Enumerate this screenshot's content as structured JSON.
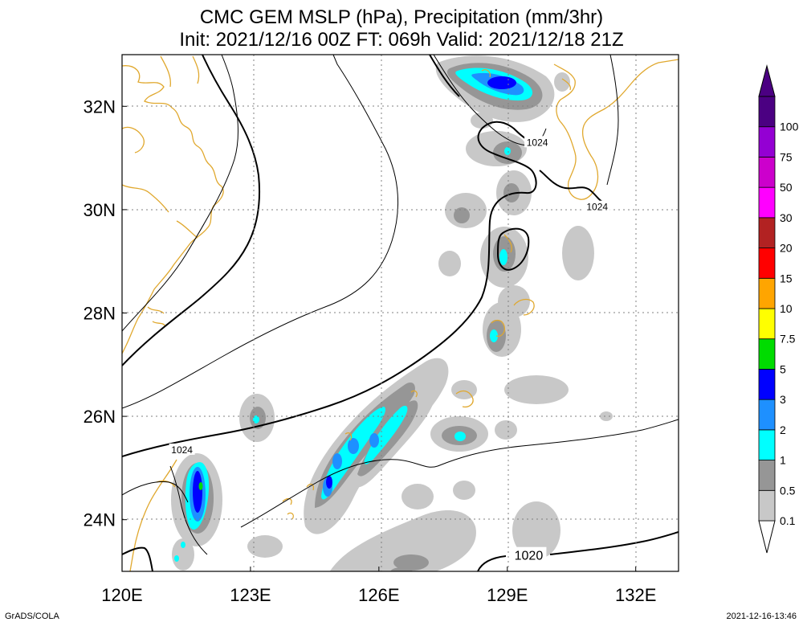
{
  "title": {
    "line1": "CMC GEM MSLP (hPa), Precipitation (mm/3hr)",
    "line2": "Init: 2021/12/16 00Z  FT: 069h  Valid: 2021/12/18 21Z"
  },
  "footer": {
    "left": "GrADS/COLA",
    "right": "2021-12-16-13:46"
  },
  "map": {
    "lon_range": [
      120,
      133
    ],
    "lat_range": [
      23,
      33
    ],
    "x_ticks": [
      {
        "value": 120,
        "label": "120E"
      },
      {
        "value": 123,
        "label": "123E"
      },
      {
        "value": 126,
        "label": "126E"
      },
      {
        "value": 129,
        "label": "129E"
      },
      {
        "value": 132,
        "label": "132E"
      }
    ],
    "y_ticks": [
      {
        "value": 24,
        "label": "24N"
      },
      {
        "value": 26,
        "label": "26N"
      },
      {
        "value": 28,
        "label": "28N"
      },
      {
        "value": 30,
        "label": "30N"
      },
      {
        "value": 32,
        "label": "32N"
      }
    ],
    "grid": true,
    "coast_color": "#e0a82e",
    "isobar_labels": [
      {
        "text": "1024",
        "lon": 121.4,
        "lat": 25.35
      },
      {
        "text": "1024",
        "lon": 129.7,
        "lat": 31.3
      },
      {
        "text": "1024",
        "lon": 131.1,
        "lat": 30.05
      },
      {
        "text": "1020",
        "lon": 129.5,
        "lat": 23.3
      }
    ]
  },
  "colorbar": {
    "levels": [
      "0.1",
      "0.5",
      "1",
      "2",
      "3",
      "5",
      "7.5",
      "10",
      "15",
      "20",
      "30",
      "50",
      "75",
      "100"
    ],
    "colors": [
      "#c8c8c8",
      "#969696",
      "#00ffff",
      "#1e90ff",
      "#0000ff",
      "#00dc00",
      "#ffff00",
      "#ffa500",
      "#ff0000",
      "#b22222",
      "#ff00ff",
      "#cc00cc",
      "#9400d3",
      "#4b0082"
    ]
  }
}
